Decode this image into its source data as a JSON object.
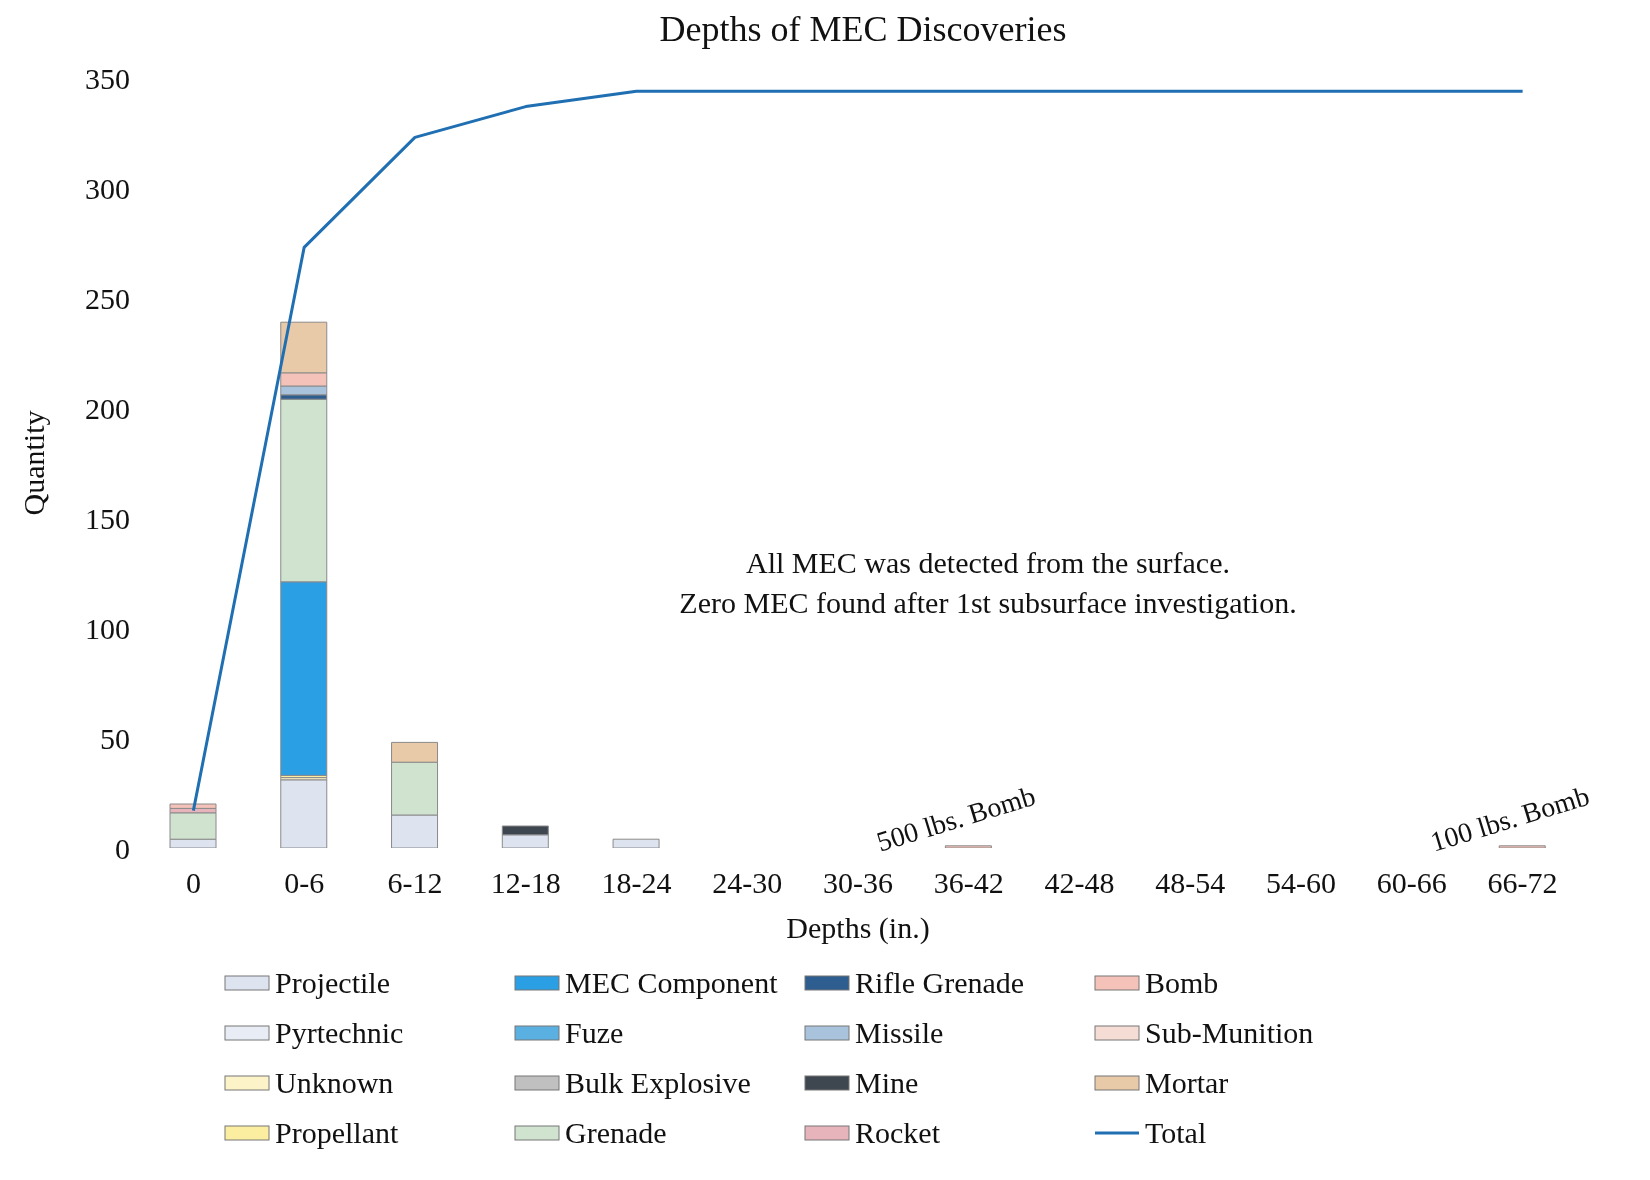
{
  "chart_data": {
    "type": "bar",
    "title": "Depths of MEC Discoveries",
    "xlabel": "Depths (in.)",
    "ylabel": "Quantity",
    "categories": [
      "0",
      "0-6",
      "6-12",
      "12-18",
      "18-24",
      "24-30",
      "30-36",
      "36-42",
      "42-48",
      "48-54",
      "54-60",
      "60-66",
      "66-72"
    ],
    "stacked": true,
    "ylim": [
      0,
      350
    ],
    "yticks": [
      0,
      50,
      100,
      150,
      200,
      250,
      300,
      350
    ],
    "grid": false,
    "legend": "bottom",
    "series": [
      {
        "name": "Projectile",
        "color": "#dde3ef",
        "values": [
          4,
          31,
          15,
          6,
          4,
          0,
          0,
          0,
          0,
          0,
          0,
          0,
          0
        ]
      },
      {
        "name": "Pyrtechnic",
        "color": "#e8edf5",
        "values": [
          0,
          0,
          0,
          0,
          0,
          0,
          0,
          0,
          0,
          0,
          0,
          0,
          0
        ]
      },
      {
        "name": "Unknown",
        "color": "#fdf3c8",
        "values": [
          0,
          1,
          0,
          0,
          0,
          0,
          0,
          0,
          0,
          0,
          0,
          0,
          0
        ]
      },
      {
        "name": "Propellant",
        "color": "#fbeea0",
        "values": [
          0,
          1,
          0,
          0,
          0,
          0,
          0,
          0,
          0,
          0,
          0,
          0,
          0
        ]
      },
      {
        "name": "MEC Component",
        "color": "#2a9fe3",
        "values": [
          0,
          88,
          0,
          0,
          0,
          0,
          0,
          0,
          0,
          0,
          0,
          0,
          0
        ]
      },
      {
        "name": "Fuze",
        "color": "#5ab0e0",
        "values": [
          0,
          0,
          0,
          0,
          0,
          0,
          0,
          0,
          0,
          0,
          0,
          0,
          0
        ]
      },
      {
        "name": "Bulk Explosive",
        "color": "#c0c0c0",
        "values": [
          0,
          0,
          0,
          0,
          0,
          0,
          0,
          0,
          0,
          0,
          0,
          0,
          0
        ]
      },
      {
        "name": "Grenade",
        "color": "#cfe3cf",
        "values": [
          12,
          83,
          24,
          0,
          0,
          0,
          0,
          0,
          0,
          0,
          0,
          0,
          0
        ]
      },
      {
        "name": "Rifle Grenade",
        "color": "#2e5d8f",
        "values": [
          0,
          2,
          0,
          0,
          0,
          0,
          0,
          0,
          0,
          0,
          0,
          0,
          0
        ]
      },
      {
        "name": "Missile",
        "color": "#a9c3dd",
        "values": [
          0,
          4,
          0,
          0,
          0,
          0,
          0,
          0,
          0,
          0,
          0,
          0,
          0
        ]
      },
      {
        "name": "Mine",
        "color": "#3e4650",
        "values": [
          0,
          0,
          0,
          4,
          0,
          0,
          0,
          0,
          0,
          0,
          0,
          0,
          0
        ]
      },
      {
        "name": "Rocket",
        "color": "#e8b4bc",
        "values": [
          2,
          0,
          0,
          0,
          0,
          0,
          0,
          0,
          0,
          0,
          0,
          0,
          0
        ]
      },
      {
        "name": "Bomb",
        "color": "#f4c2b8",
        "values": [
          2,
          6,
          0,
          0,
          0,
          0,
          0,
          1,
          0,
          0,
          0,
          0,
          1
        ]
      },
      {
        "name": "Sub-Munition",
        "color": "#f5ddd5",
        "values": [
          0,
          0,
          0,
          0,
          0,
          0,
          0,
          0,
          0,
          0,
          0,
          0,
          0
        ]
      },
      {
        "name": "Mortar",
        "color": "#e8c9a8",
        "values": [
          0,
          23,
          9,
          0,
          0,
          0,
          0,
          0,
          0,
          0,
          0,
          0,
          0
        ]
      },
      {
        "name": "Total",
        "type": "line",
        "color": "#1f6fb2",
        "values": [
          17,
          273,
          323,
          337,
          344,
          344,
          344,
          344,
          344,
          344,
          344,
          344,
          344
        ]
      }
    ],
    "annotations": [
      "All MEC was detected from the surface.",
      "Zero MEC found after 1st subsurface investigation.",
      {
        "text": "500 lbs. Bomb",
        "x": "36-42",
        "y": 1
      },
      {
        "text": "100 lbs. Bomb",
        "x": "66-72",
        "y": 1
      }
    ]
  }
}
